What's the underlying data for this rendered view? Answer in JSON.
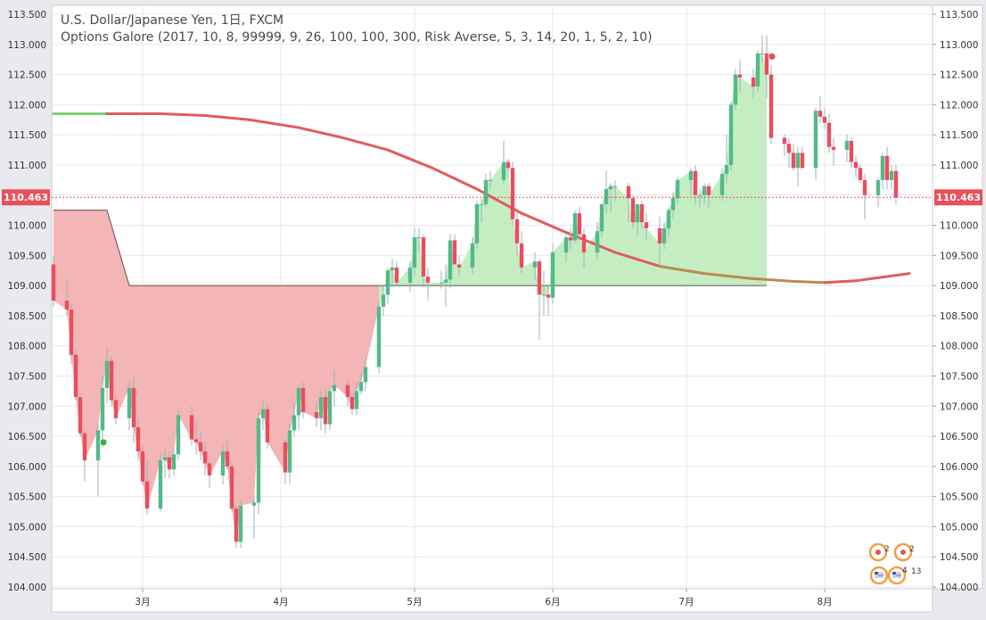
{
  "legend": {
    "symbol_title": "U.S. Dollar/Japanese Yen, 1日, FXCM",
    "indicator_title": "Options Galore (2017, 10, 8, 99999, 9, 26, 100, 100, 300, Risk Averse, 5, 3, 14, 20, 1, 5, 2, 10)"
  },
  "colors": {
    "up": "#53b987",
    "down": "#eb4d5c",
    "fill_down": "#f3b5b5",
    "fill_up": "#c4eec2",
    "ma": "#e15c5c",
    "ma_green": "#7ed26f",
    "ma_brown": "#b98a50",
    "grid": "#e4e8ee",
    "price_badge": "#e8505b"
  },
  "chart_data": {
    "type": "candlestick",
    "title": "",
    "ylim": [
      104.0,
      113.5
    ],
    "yticks": [
      104.0,
      104.5,
      105.0,
      105.5,
      106.0,
      106.5,
      107.0,
      107.5,
      108.0,
      108.5,
      109.0,
      109.5,
      110.0,
      110.5,
      111.0,
      111.5,
      112.0,
      112.5,
      113.0,
      113.5
    ],
    "ytick_labels": [
      "104.000",
      "104.500",
      "105.000",
      "105.500",
      "106.000",
      "106.500",
      "107.000",
      "107.500",
      "108.000",
      "108.500",
      "109.000",
      "109.500",
      "110.000",
      "110.500",
      "111.000",
      "111.500",
      "112.000",
      "112.500",
      "113.000",
      "113.500"
    ],
    "x_start": "2018-02-09",
    "x_end": "2018-08-22",
    "xticks": [
      {
        "date": "2018-03-01",
        "label": "3月"
      },
      {
        "date": "2018-04-01",
        "label": "4月"
      },
      {
        "date": "2018-05-01",
        "label": "5月"
      },
      {
        "date": "2018-06-01",
        "label": "6月"
      },
      {
        "date": "2018-07-01",
        "label": "7月"
      },
      {
        "date": "2018-08-01",
        "label": "8月"
      }
    ],
    "last_price": 110.463,
    "last_price_label": "110.463",
    "grid": true,
    "candles": [
      [
        "2018-02-09",
        109.35,
        109.5,
        108.65,
        108.75
      ],
      [
        "2018-02-12",
        108.75,
        109.1,
        108.5,
        108.6
      ],
      [
        "2018-02-13",
        108.6,
        108.7,
        107.7,
        107.85
      ],
      [
        "2018-02-14",
        107.85,
        107.95,
        107.1,
        107.15
      ],
      [
        "2018-02-15",
        107.15,
        107.2,
        106.5,
        106.55
      ],
      [
        "2018-02-16",
        106.55,
        106.6,
        105.75,
        106.1
      ],
      [
        "2018-02-19",
        106.1,
        106.7,
        105.5,
        106.6
      ],
      [
        "2018-02-20",
        106.6,
        107.5,
        106.3,
        107.3
      ],
      [
        "2018-02-21",
        107.3,
        107.95,
        107.05,
        107.75
      ],
      [
        "2018-02-22",
        107.75,
        107.85,
        107.0,
        107.1
      ],
      [
        "2018-02-23",
        107.1,
        107.2,
        106.7,
        106.8
      ],
      [
        "2018-02-26",
        106.8,
        107.4,
        106.6,
        107.3
      ],
      [
        "2018-02-27",
        107.3,
        107.5,
        106.4,
        106.65
      ],
      [
        "2018-02-28",
        106.65,
        106.8,
        106.1,
        106.25
      ],
      [
        "2018-03-01",
        106.25,
        106.35,
        105.7,
        105.75
      ],
      [
        "2018-03-02",
        105.75,
        106.1,
        105.2,
        105.3
      ],
      [
        "2018-03-05",
        105.3,
        106.25,
        105.25,
        106.1
      ],
      [
        "2018-03-06",
        106.1,
        106.3,
        105.8,
        106.15
      ],
      [
        "2018-03-07",
        106.15,
        106.25,
        105.8,
        105.95
      ],
      [
        "2018-03-08",
        105.95,
        106.3,
        105.85,
        106.2
      ],
      [
        "2018-03-09",
        106.2,
        106.95,
        106.1,
        106.85
      ],
      [
        "2018-03-12",
        106.85,
        107.0,
        106.35,
        106.45
      ],
      [
        "2018-03-13",
        106.45,
        106.75,
        106.2,
        106.4
      ],
      [
        "2018-03-14",
        106.4,
        106.55,
        106.1,
        106.25
      ],
      [
        "2018-03-15",
        106.25,
        106.4,
        105.85,
        106.05
      ],
      [
        "2018-03-16",
        106.05,
        106.1,
        105.65,
        105.85
      ],
      [
        "2018-03-19",
        105.85,
        106.35,
        105.7,
        106.25
      ],
      [
        "2018-03-20",
        106.25,
        106.45,
        105.95,
        106.0
      ],
      [
        "2018-03-21",
        106.0,
        106.1,
        105.25,
        105.3
      ],
      [
        "2018-03-22",
        105.3,
        105.35,
        104.65,
        104.75
      ],
      [
        "2018-03-23",
        104.75,
        105.45,
        104.65,
        105.35
      ],
      [
        "2018-03-26",
        105.35,
        105.5,
        104.8,
        105.4
      ],
      [
        "2018-03-27",
        105.4,
        106.9,
        105.2,
        106.8
      ],
      [
        "2018-03-28",
        106.8,
        107.1,
        106.6,
        106.95
      ],
      [
        "2018-03-29",
        106.95,
        107.05,
        106.3,
        106.4
      ],
      [
        "2018-04-02",
        106.4,
        106.45,
        105.7,
        105.9
      ],
      [
        "2018-04-03",
        105.9,
        106.7,
        105.7,
        106.6
      ],
      [
        "2018-04-04",
        106.6,
        107.05,
        106.5,
        106.85
      ],
      [
        "2018-04-05",
        106.85,
        107.35,
        106.6,
        107.3
      ],
      [
        "2018-04-06",
        107.3,
        107.4,
        106.8,
        106.9
      ],
      [
        "2018-04-09",
        106.9,
        107.05,
        106.65,
        106.8
      ],
      [
        "2018-04-10",
        106.8,
        107.25,
        106.6,
        107.15
      ],
      [
        "2018-04-11",
        107.15,
        107.3,
        106.55,
        106.7
      ],
      [
        "2018-04-12",
        106.7,
        107.3,
        106.6,
        107.25
      ],
      [
        "2018-04-13",
        107.25,
        107.6,
        107.0,
        107.35
      ],
      [
        "2018-04-16",
        107.35,
        107.45,
        107.0,
        107.15
      ],
      [
        "2018-04-17",
        107.15,
        107.25,
        106.85,
        106.95
      ],
      [
        "2018-04-18",
        106.95,
        107.4,
        106.85,
        107.25
      ],
      [
        "2018-04-19",
        107.25,
        107.55,
        107.2,
        107.4
      ],
      [
        "2018-04-20",
        107.4,
        107.75,
        107.25,
        107.65
      ],
      [
        "2018-04-23",
        107.65,
        108.75,
        107.55,
        108.65
      ],
      [
        "2018-04-24",
        108.65,
        109.0,
        108.5,
        108.85
      ],
      [
        "2018-04-25",
        108.85,
        109.3,
        108.7,
        109.25
      ],
      [
        "2018-04-26",
        109.25,
        109.45,
        109.0,
        109.3
      ],
      [
        "2018-04-27",
        109.3,
        109.4,
        109.0,
        109.05
      ],
      [
        "2018-04-30",
        109.05,
        109.4,
        108.9,
        109.3
      ],
      [
        "2018-05-01",
        109.3,
        109.95,
        109.15,
        109.8
      ],
      [
        "2018-05-02",
        109.8,
        109.95,
        109.55,
        109.8
      ],
      [
        "2018-05-03",
        109.8,
        109.85,
        109.0,
        109.15
      ],
      [
        "2018-05-04",
        109.15,
        109.3,
        108.75,
        109.05
      ],
      [
        "2018-05-07",
        109.05,
        109.25,
        108.95,
        109.05
      ],
      [
        "2018-05-08",
        109.05,
        109.35,
        108.65,
        109.1
      ],
      [
        "2018-05-09",
        109.1,
        109.85,
        108.95,
        109.75
      ],
      [
        "2018-05-10",
        109.75,
        109.85,
        109.35,
        109.35
      ],
      [
        "2018-05-11",
        109.35,
        109.5,
        109.15,
        109.3
      ],
      [
        "2018-05-14",
        109.3,
        109.8,
        109.2,
        109.7
      ],
      [
        "2018-05-15",
        109.7,
        110.4,
        109.6,
        110.35
      ],
      [
        "2018-05-16",
        110.35,
        110.45,
        110.05,
        110.35
      ],
      [
        "2018-05-17",
        110.35,
        110.85,
        110.3,
        110.75
      ],
      [
        "2018-05-18",
        110.75,
        110.9,
        110.6,
        110.75
      ],
      [
        "2018-05-21",
        110.75,
        111.4,
        110.7,
        111.05
      ],
      [
        "2018-05-22",
        111.05,
        111.1,
        110.8,
        110.95
      ],
      [
        "2018-05-23",
        110.95,
        111.05,
        110.0,
        110.1
      ],
      [
        "2018-05-24",
        110.1,
        110.2,
        109.5,
        109.7
      ],
      [
        "2018-05-25",
        109.7,
        109.9,
        109.2,
        109.3
      ],
      [
        "2018-05-28",
        109.3,
        109.55,
        109.1,
        109.4
      ],
      [
        "2018-05-29",
        109.4,
        109.45,
        108.1,
        108.85
      ],
      [
        "2018-05-30",
        108.85,
        109.25,
        108.5,
        108.85
      ],
      [
        "2018-05-31",
        108.85,
        109.0,
        108.5,
        108.8
      ],
      [
        "2018-06-01",
        108.8,
        109.7,
        108.7,
        109.55
      ],
      [
        "2018-06-04",
        109.55,
        109.85,
        109.4,
        109.8
      ],
      [
        "2018-06-05",
        109.8,
        109.95,
        109.6,
        109.75
      ],
      [
        "2018-06-06",
        109.75,
        110.25,
        109.7,
        110.2
      ],
      [
        "2018-06-07",
        110.2,
        110.3,
        109.75,
        109.85
      ],
      [
        "2018-06-08",
        109.85,
        109.95,
        109.3,
        109.55
      ],
      [
        "2018-06-11",
        109.55,
        110.05,
        109.45,
        109.9
      ],
      [
        "2018-06-12",
        109.9,
        110.35,
        109.8,
        110.35
      ],
      [
        "2018-06-13",
        110.35,
        110.9,
        110.2,
        110.6
      ],
      [
        "2018-06-14",
        110.6,
        110.7,
        110.2,
        110.65
      ],
      [
        "2018-06-15",
        110.65,
        110.75,
        110.4,
        110.65
      ],
      [
        "2018-06-18",
        110.65,
        110.7,
        110.05,
        110.45
      ],
      [
        "2018-06-19",
        110.45,
        110.5,
        109.95,
        110.05
      ],
      [
        "2018-06-20",
        110.05,
        110.35,
        109.85,
        110.35
      ],
      [
        "2018-06-21",
        110.35,
        110.4,
        109.95,
        110.05
      ],
      [
        "2018-06-22",
        110.05,
        110.2,
        109.75,
        109.95
      ],
      [
        "2018-06-25",
        109.95,
        110.15,
        109.35,
        109.7
      ],
      [
        "2018-06-26",
        109.7,
        110.05,
        109.6,
        109.95
      ],
      [
        "2018-06-27",
        109.95,
        110.3,
        109.8,
        110.25
      ],
      [
        "2018-06-28",
        110.25,
        110.55,
        110.1,
        110.45
      ],
      [
        "2018-06-29",
        110.45,
        110.8,
        110.35,
        110.75
      ],
      [
        "2018-07-02",
        110.75,
        110.95,
        110.5,
        110.9
      ],
      [
        "2018-07-03",
        110.9,
        111.0,
        110.35,
        110.5
      ],
      [
        "2018-07-04",
        110.5,
        110.6,
        110.3,
        110.5
      ],
      [
        "2018-07-05",
        110.5,
        110.7,
        110.35,
        110.65
      ],
      [
        "2018-07-06",
        110.65,
        110.7,
        110.3,
        110.5
      ],
      [
        "2018-07-09",
        110.5,
        110.95,
        110.4,
        110.85
      ],
      [
        "2018-07-10",
        110.85,
        111.5,
        110.7,
        111.0
      ],
      [
        "2018-07-11",
        111.0,
        112.05,
        110.9,
        112.0
      ],
      [
        "2018-07-12",
        112.0,
        112.6,
        111.9,
        112.5
      ],
      [
        "2018-07-13",
        112.5,
        112.75,
        112.2,
        112.45
      ],
      [
        "2018-07-16",
        112.45,
        112.6,
        112.1,
        112.3
      ],
      [
        "2018-07-17",
        112.3,
        112.9,
        112.2,
        112.85
      ],
      [
        "2018-07-18",
        112.85,
        113.15,
        112.7,
        112.85
      ],
      [
        "2018-07-19",
        112.85,
        113.15,
        112.1,
        112.5
      ],
      [
        "2018-07-20",
        112.5,
        112.65,
        111.35,
        111.45
      ],
      [
        "2018-07-23",
        111.45,
        111.5,
        111.15,
        111.35
      ],
      [
        "2018-07-24",
        111.35,
        111.45,
        110.95,
        111.2
      ],
      [
        "2018-07-25",
        111.2,
        111.35,
        110.9,
        110.95
      ],
      [
        "2018-07-26",
        110.95,
        111.3,
        110.65,
        111.2
      ],
      [
        "2018-07-27",
        111.2,
        111.3,
        110.95,
        110.95
      ],
      [
        "2018-07-30",
        110.95,
        111.95,
        110.75,
        111.9
      ],
      [
        "2018-07-31",
        111.9,
        112.15,
        111.7,
        111.8
      ],
      [
        "2018-08-01",
        111.8,
        111.95,
        111.6,
        111.7
      ],
      [
        "2018-08-02",
        111.7,
        111.85,
        111.2,
        111.3
      ],
      [
        "2018-08-03",
        111.3,
        111.45,
        111.0,
        111.25
      ],
      [
        "2018-08-06",
        111.25,
        111.5,
        111.05,
        111.4
      ],
      [
        "2018-08-07",
        111.4,
        111.45,
        110.95,
        111.05
      ],
      [
        "2018-08-08",
        111.05,
        111.15,
        110.8,
        110.95
      ],
      [
        "2018-08-09",
        110.95,
        111.0,
        110.7,
        110.75
      ],
      [
        "2018-08-10",
        110.75,
        110.85,
        110.1,
        110.5
      ],
      [
        "2018-08-13",
        110.5,
        110.8,
        110.3,
        110.75
      ],
      [
        "2018-08-14",
        110.75,
        111.2,
        110.6,
        111.15
      ],
      [
        "2018-08-15",
        111.15,
        111.3,
        110.6,
        110.75
      ],
      [
        "2018-08-16",
        110.75,
        111.0,
        110.6,
        110.9
      ],
      [
        "2018-08-17",
        110.9,
        111.0,
        110.35,
        110.46
      ]
    ],
    "ma_line": [
      [
        "2018-02-09",
        111.85,
        "green"
      ],
      [
        "2018-02-21",
        111.85,
        "green"
      ],
      [
        "2018-02-22",
        111.85,
        "red"
      ],
      [
        "2018-03-05",
        111.85
      ],
      [
        "2018-03-15",
        111.82
      ],
      [
        "2018-03-25",
        111.75
      ],
      [
        "2018-04-05",
        111.62
      ],
      [
        "2018-04-15",
        111.45
      ],
      [
        "2018-04-25",
        111.25
      ],
      [
        "2018-05-05",
        110.95
      ],
      [
        "2018-05-15",
        110.6
      ],
      [
        "2018-05-25",
        110.2
      ],
      [
        "2018-06-05",
        109.85
      ],
      [
        "2018-06-15",
        109.55
      ],
      [
        "2018-06-25",
        109.32
      ],
      [
        "2018-07-05",
        109.2,
        "brown"
      ],
      [
        "2018-07-15",
        109.12,
        "brown"
      ],
      [
        "2018-07-25",
        109.07,
        "brown"
      ],
      [
        "2018-08-01",
        109.05
      ],
      [
        "2018-08-08",
        109.08
      ],
      [
        "2018-08-15",
        109.15
      ],
      [
        "2018-08-20",
        109.2
      ]
    ],
    "fill_regions": [
      {
        "kind": "down",
        "baseline_from": [
          [
            "2018-02-09",
            110.25
          ],
          [
            "2018-02-21",
            110.25
          ],
          [
            "2018-02-26",
            109.0
          ],
          [
            "2018-04-23",
            109.0
          ]
        ]
      },
      {
        "kind": "up",
        "from": "2018-04-23",
        "to": "2018-07-19",
        "baseline": 109.0
      }
    ],
    "markers": [
      {
        "date": "2018-02-19",
        "price": 106.4,
        "color": "#3fae4a"
      },
      {
        "date": "2018-07-19",
        "price": 112.8,
        "color": "#e8505b"
      }
    ]
  },
  "corner_badges": {
    "top_left_count": "2",
    "top_right_count": "2",
    "bottom_count_a": "4",
    "bottom_count_b": "13"
  }
}
